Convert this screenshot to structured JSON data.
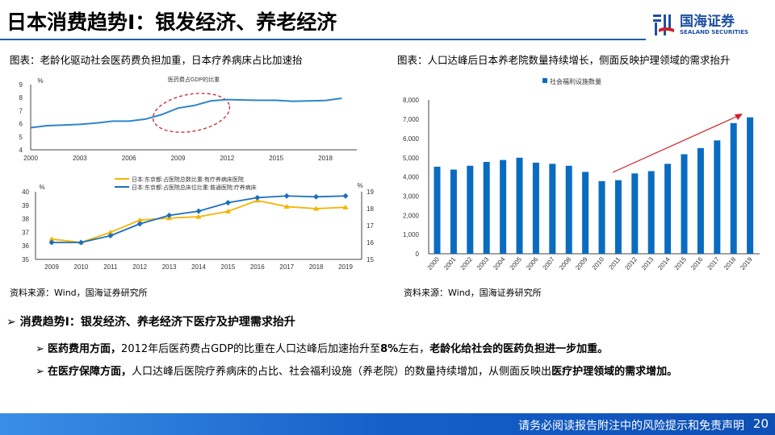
{
  "title": "日本消费趋势I：银发经济、养老经济",
  "logo": {
    "cn": "国海证券",
    "en": "SEALAND SECURITIES"
  },
  "left_caption": "图表：老龄化驱动社会医药费负担加重，日本疗养病床占比加速抬",
  "right_caption": "图表：人口达峰后日本养老院数量持续增长，侧面反映护理领域的需求抬升",
  "left_source": "资料来源：Wind，国海证券研究所",
  "right_source": "资料来源：Wind，国海证券研究所",
  "bullets": {
    "main": "消费趋势I：银发经济、养老经济下医疗及护理需求抬升",
    "sub1": {
      "bold1": "医药费用方面，",
      "text": "2012年后医药费占GDP的比重在人口达峰后加速抬升至",
      "bold_pct": "8%",
      "text2": "左右，",
      "bold2": "老龄化给社会的医药负担进一步加重。"
    },
    "sub2": {
      "bold1": "在医疗保障方面，",
      "text": "人口达峰后医院疗养病床的占比、社会福利设施（养老院）的数量持续增加，从侧面反映出",
      "bold2": "医疗护理领域的需求增加。"
    }
  },
  "footer": {
    "disclaimer": "请务必阅读报告附注中的风险提示和免责声明",
    "page": "20"
  },
  "colors": {
    "blue": "#2e86c8",
    "bar": "#0a6cc0",
    "yellow": "#f5b400",
    "line2": "#1a6fbf",
    "red": "#d0202a"
  },
  "chart_data": [
    {
      "type": "line",
      "title": "医药费占GDP的比重",
      "ylabel": "%",
      "ylim": [
        4,
        9
      ],
      "yticks": [
        4,
        5,
        6,
        7,
        8,
        9
      ],
      "xticks": [
        "2000",
        "2003",
        "2006",
        "2009",
        "2012",
        "2015",
        "2018"
      ],
      "x": [
        2000,
        2001,
        2002,
        2003,
        2004,
        2005,
        2006,
        2007,
        2008,
        2009,
        2010,
        2011,
        2012,
        2013,
        2014,
        2015,
        2016,
        2017,
        2018,
        2019
      ],
      "values": [
        5.7,
        5.85,
        5.9,
        5.95,
        6.05,
        6.2,
        6.2,
        6.35,
        6.7,
        7.2,
        7.4,
        7.75,
        7.85,
        7.82,
        7.8,
        7.8,
        7.72,
        7.75,
        7.78,
        7.95
      ],
      "annotation": "dashed red ellipse 2007-2012"
    },
    {
      "type": "line",
      "categories": [
        "2009",
        "2010",
        "2011",
        "2012",
        "2013",
        "2014",
        "2015",
        "2016",
        "2017",
        "2018",
        "2019"
      ],
      "ylabel_left": "%",
      "ylabel_right": "%",
      "ylim_left": [
        35,
        40
      ],
      "ylim_right": [
        15,
        19
      ],
      "yticks_left": [
        35,
        36,
        37,
        38,
        39,
        40
      ],
      "yticks_right": [
        15,
        16,
        17,
        18,
        19
      ],
      "series": [
        {
          "name": "日本:东京都:占医院总数比重:有疗养病床医院",
          "axis": "left",
          "values": [
            36.5,
            36.25,
            37.0,
            37.9,
            38.05,
            38.15,
            38.55,
            39.35,
            38.9,
            38.75,
            38.85
          ]
        },
        {
          "name": "日本:东京都:占医院总床位比重:普通医院:疗养病床",
          "axis": "right",
          "values": [
            16.0,
            16.0,
            16.4,
            17.1,
            17.6,
            17.85,
            18.35,
            18.65,
            18.75,
            18.7,
            18.75
          ]
        }
      ],
      "legend": "top"
    },
    {
      "type": "bar",
      "categories": [
        "2000",
        "2001",
        "2002",
        "2003",
        "2004",
        "2005",
        "2006",
        "2007",
        "2008",
        "2009",
        "2010",
        "2011",
        "2012",
        "2013",
        "2014",
        "2015",
        "2016",
        "2017",
        "2018",
        "2019"
      ],
      "series": [
        {
          "name": "社会福利设施数量",
          "values": [
            4530,
            4380,
            4580,
            4780,
            4880,
            5000,
            4740,
            4680,
            4580,
            4260,
            3780,
            3830,
            4180,
            4300,
            4680,
            5180,
            5500,
            5900,
            6800,
            7100
          ]
        }
      ],
      "ylim": [
        0,
        8000
      ],
      "yticks": [
        "0",
        "1,000",
        "2,000",
        "3,000",
        "4,000",
        "5,000",
        "6,000",
        "7,000",
        "8,000"
      ],
      "legend": "top",
      "annotation": "red upward arrow 2010-2019"
    }
  ]
}
